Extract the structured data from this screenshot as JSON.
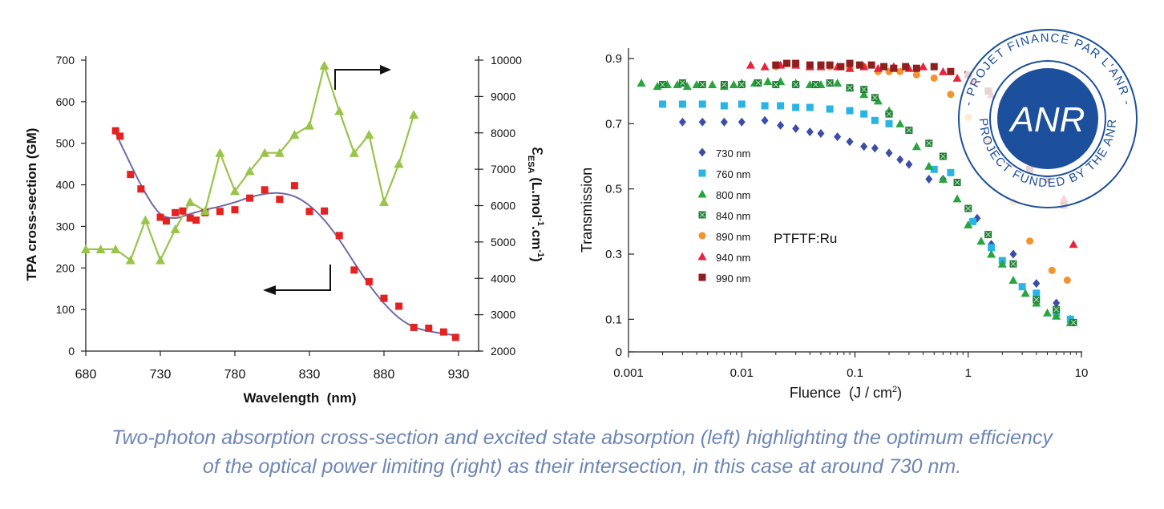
{
  "chart_data": [
    {
      "type": "line",
      "xlabel": "Wavelength  (nm)",
      "ylabel": "TPA cross-section (GM)",
      "y2label_symbol": "ε",
      "y2label_sub": "ESA",
      "y2label_rest": "(L.mol",
      "y2label_sup1": "-1",
      "y2label_mid": ".cm",
      "y2label_sup2": "-1",
      "y2label_end": ")",
      "xlim": [
        680,
        930
      ],
      "ylim": [
        0,
        700
      ],
      "y2lim": [
        2000,
        10000
      ],
      "xticks": [
        "680",
        "730",
        "780",
        "830",
        "880",
        "930"
      ],
      "yticks": [
        "0",
        "100",
        "200",
        "300",
        "400",
        "500",
        "600",
        "700"
      ],
      "y2ticks": [
        "2000",
        "3000",
        "4000",
        "5000",
        "6000",
        "7000",
        "8000",
        "9000",
        "10000"
      ],
      "series": [
        {
          "axis": "left",
          "color": "#e52222",
          "marker": "square",
          "x": [
            700,
            703,
            710,
            717,
            730,
            734,
            740,
            745,
            750,
            754,
            760,
            770,
            780,
            790,
            800,
            810,
            820,
            830,
            840,
            850,
            860,
            870,
            880,
            890,
            900,
            910,
            920,
            928
          ],
          "values": [
            530,
            517,
            425,
            390,
            322,
            313,
            333,
            337,
            320,
            315,
            333,
            336,
            340,
            368,
            388,
            365,
            398,
            336,
            337,
            278,
            195,
            167,
            127,
            108,
            57,
            55,
            46,
            33
          ]
        },
        {
          "axis": "right",
          "color": "#98c448",
          "marker": "triangle",
          "x": [
            680,
            690,
            700,
            710,
            720,
            730,
            740,
            750,
            760,
            770,
            780,
            790,
            800,
            810,
            820,
            830,
            840,
            850,
            860,
            870,
            880,
            890,
            900
          ],
          "values": [
            4800,
            4800,
            4800,
            4500,
            5600,
            4500,
            5350,
            6100,
            5850,
            7450,
            6400,
            6950,
            7450,
            7450,
            7950,
            8200,
            9850,
            8600,
            7450,
            7950,
            6100,
            7150,
            8500
          ]
        }
      ],
      "fit_x": [
        700,
        710,
        720,
        730,
        740,
        750,
        760,
        770,
        780,
        790,
        800,
        810,
        820,
        830,
        840,
        850,
        860,
        870,
        880,
        890,
        900,
        910,
        920,
        928
      ],
      "fit_values": [
        525,
        450,
        380,
        330,
        320,
        330,
        340,
        348,
        358,
        370,
        378,
        380,
        372,
        350,
        315,
        268,
        213,
        160,
        115,
        80,
        58,
        48,
        42,
        38
      ]
    },
    {
      "type": "scatter",
      "xlabel": "Fluence  (J / cm",
      "xlabel_sup": "2",
      "xlabel_end": ")",
      "ylabel": "Transmission",
      "xscale": "log",
      "xlim": [
        0.001,
        10
      ],
      "ylim": [
        0,
        0.9
      ],
      "xticks": [
        "0.001",
        "0.01",
        "0.1",
        "1",
        "10"
      ],
      "yticks": [
        "0",
        "0.1",
        "0.3",
        "0.5",
        "0.7",
        "0.9"
      ],
      "annotation": "PTFTF:Ru",
      "legend_position": "left-inside",
      "series": [
        {
          "name": "730 nm",
          "color": "#3a4da8",
          "marker": "diamond",
          "x": [
            0.003,
            0.0045,
            0.007,
            0.01,
            0.016,
            0.022,
            0.03,
            0.04,
            0.05,
            0.07,
            0.09,
            0.12,
            0.15,
            0.2,
            0.25,
            0.3,
            0.45,
            0.6,
            1.2,
            1.6,
            2.5,
            4,
            6,
            8
          ],
          "y": [
            0.705,
            0.705,
            0.705,
            0.705,
            0.71,
            0.695,
            0.685,
            0.675,
            0.67,
            0.66,
            0.645,
            0.63,
            0.625,
            0.61,
            0.59,
            0.575,
            0.53,
            0.53,
            0.41,
            0.33,
            0.3,
            0.21,
            0.15,
            0.1
          ]
        },
        {
          "name": "760 nm",
          "color": "#29b4e6",
          "marker": "square",
          "x": [
            0.002,
            0.003,
            0.0045,
            0.007,
            0.01,
            0.016,
            0.022,
            0.03,
            0.04,
            0.06,
            0.09,
            0.12,
            0.15,
            0.2,
            0.3,
            0.5,
            0.7,
            1.1,
            1.6,
            2,
            3,
            4,
            6,
            8
          ],
          "y": [
            0.76,
            0.76,
            0.76,
            0.755,
            0.76,
            0.755,
            0.755,
            0.75,
            0.75,
            0.745,
            0.74,
            0.73,
            0.71,
            0.7,
            0.68,
            0.56,
            0.55,
            0.4,
            0.32,
            0.28,
            0.2,
            0.18,
            0.12,
            0.1
          ]
        },
        {
          "name": "800 nm",
          "color": "#27a63d",
          "marker": "triangle",
          "x": [
            0.0013,
            0.0018,
            0.0022,
            0.0027,
            0.0033,
            0.004,
            0.0055,
            0.007,
            0.0085,
            0.01,
            0.013,
            0.017,
            0.022,
            0.03,
            0.04,
            0.05,
            0.07,
            0.09,
            0.12,
            0.16,
            0.2,
            0.25,
            0.35,
            0.45,
            0.6,
            0.8,
            1,
            1.3,
            1.6,
            2,
            2.5,
            3.2,
            4,
            5,
            6,
            8
          ],
          "y": [
            0.825,
            0.815,
            0.82,
            0.82,
            0.815,
            0.82,
            0.82,
            0.815,
            0.82,
            0.825,
            0.825,
            0.83,
            0.83,
            0.825,
            0.82,
            0.82,
            0.825,
            0.81,
            0.79,
            0.77,
            0.74,
            0.7,
            0.63,
            0.57,
            0.53,
            0.47,
            0.39,
            0.34,
            0.3,
            0.27,
            0.22,
            0.18,
            0.15,
            0.12,
            0.11,
            0.09
          ]
        },
        {
          "name": "840 nm",
          "color": "#1f7b35",
          "marker": "square-x",
          "x": [
            0.002,
            0.003,
            0.0045,
            0.007,
            0.01,
            0.014,
            0.02,
            0.03,
            0.045,
            0.06,
            0.09,
            0.12,
            0.15,
            0.2,
            0.3,
            0.45,
            0.6,
            0.8,
            1,
            1.5,
            2.5,
            4,
            6,
            8.5
          ],
          "y": [
            0.82,
            0.825,
            0.82,
            0.82,
            0.82,
            0.825,
            0.82,
            0.82,
            0.82,
            0.825,
            0.81,
            0.805,
            0.78,
            0.73,
            0.68,
            0.64,
            0.6,
            0.52,
            0.44,
            0.36,
            0.27,
            0.16,
            0.13,
            0.09
          ]
        },
        {
          "name": "890 nm",
          "color": "#f4922c",
          "marker": "circle",
          "x": [
            0.02,
            0.03,
            0.04,
            0.06,
            0.09,
            0.12,
            0.16,
            0.2,
            0.25,
            0.35,
            0.5,
            0.7,
            1,
            1.5,
            2.5,
            3.5,
            5.5,
            7.5
          ],
          "y": [
            0.875,
            0.88,
            0.875,
            0.875,
            0.87,
            0.875,
            0.86,
            0.86,
            0.86,
            0.85,
            0.84,
            0.79,
            0.72,
            0.65,
            0.46,
            0.34,
            0.25,
            0.22
          ]
        },
        {
          "name": "940 nm",
          "color": "#e9233b",
          "marker": "triangle",
          "x": [
            0.012,
            0.016,
            0.022,
            0.03,
            0.04,
            0.05,
            0.07,
            0.09,
            0.12,
            0.16,
            0.22,
            0.3,
            0.4,
            0.6,
            0.8,
            1.1,
            1.6,
            2,
            3,
            5,
            7,
            8.5
          ],
          "y": [
            0.88,
            0.875,
            0.88,
            0.88,
            0.875,
            0.875,
            0.875,
            0.87,
            0.875,
            0.87,
            0.875,
            0.87,
            0.875,
            0.86,
            0.84,
            0.83,
            0.79,
            0.77,
            0.73,
            0.6,
            0.47,
            0.33
          ]
        },
        {
          "name": "990 nm",
          "color": "#8f1e1e",
          "marker": "square",
          "x": [
            0.02,
            0.025,
            0.03,
            0.04,
            0.05,
            0.06,
            0.075,
            0.09,
            0.11,
            0.14,
            0.18,
            0.22,
            0.28,
            0.35,
            0.5,
            0.7,
            1,
            1.5,
            2.5,
            3.5,
            5,
            7
          ],
          "y": [
            0.88,
            0.885,
            0.885,
            0.88,
            0.88,
            0.88,
            0.875,
            0.885,
            0.88,
            0.88,
            0.875,
            0.87,
            0.875,
            0.87,
            0.875,
            0.86,
            0.85,
            0.8,
            0.69,
            0.56,
            0.53,
            0.45
          ]
        }
      ]
    }
  ],
  "badge": {
    "logo_text": "ANR",
    "ring_outer": "- PROJET FINANCÉ PAR L'ANR -",
    "ring_inner": "PROJECT FUNDED BY THE ANR",
    "color": "#1c4f9c"
  },
  "caption": {
    "line1": "Two-photon absorption cross-section and excited state absorption (left) highlighting the optimum efficiency",
    "line2": "of the optical power limiting (right) as their intersection, in this case at around 730 nm."
  }
}
